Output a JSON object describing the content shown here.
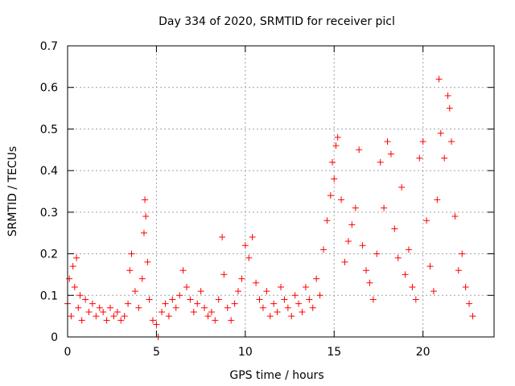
{
  "chart_data": {
    "type": "scatter",
    "title": "Day 334 of 2020, SRMTID for receiver picl",
    "xlabel": "GPS time / hours",
    "ylabel": "SRMTID / TECUs",
    "xlim": [
      0,
      24
    ],
    "ylim": [
      0,
      0.7
    ],
    "xticks": [
      0,
      5,
      10,
      15,
      20
    ],
    "yticks": [
      0,
      0.1,
      0.2,
      0.3,
      0.4,
      0.5,
      0.6,
      0.7
    ],
    "xtick_labels": [
      "0",
      "5",
      "10",
      "15",
      "20"
    ],
    "ytick_labels": [
      "0",
      "0.1",
      "0.2",
      "0.3",
      "0.4",
      "0.5",
      "0.6",
      "0.7"
    ],
    "grid": true,
    "marker": "+",
    "marker_color": "#ff0000",
    "series": [
      {
        "name": "SRMTID",
        "x": [
          0.0,
          0.1,
          0.2,
          0.3,
          0.4,
          0.5,
          0.6,
          0.7,
          0.8,
          1.0,
          1.2,
          1.4,
          1.6,
          1.8,
          2.0,
          2.2,
          2.4,
          2.6,
          2.8,
          3.0,
          3.2,
          3.4,
          3.5,
          3.6,
          3.8,
          4.0,
          4.2,
          4.3,
          4.35,
          4.4,
          4.5,
          4.6,
          4.8,
          5.0,
          5.1,
          5.3,
          5.5,
          5.7,
          5.9,
          6.1,
          6.3,
          6.5,
          6.7,
          6.9,
          7.1,
          7.3,
          7.5,
          7.7,
          7.9,
          8.1,
          8.3,
          8.5,
          8.7,
          8.8,
          9.0,
          9.2,
          9.4,
          9.6,
          9.8,
          10.0,
          10.2,
          10.4,
          10.6,
          10.8,
          11.0,
          11.2,
          11.4,
          11.6,
          11.8,
          12.0,
          12.2,
          12.4,
          12.6,
          12.8,
          13.0,
          13.2,
          13.4,
          13.6,
          13.8,
          14.0,
          14.2,
          14.4,
          14.6,
          14.8,
          14.9,
          15.0,
          15.1,
          15.2,
          15.4,
          15.6,
          15.8,
          16.0,
          16.2,
          16.4,
          16.6,
          16.8,
          17.0,
          17.2,
          17.4,
          17.6,
          17.8,
          18.0,
          18.2,
          18.4,
          18.6,
          18.8,
          19.0,
          19.2,
          19.4,
          19.6,
          19.8,
          20.0,
          20.2,
          20.4,
          20.6,
          20.8,
          20.9,
          21.0,
          21.2,
          21.4,
          21.5,
          21.6,
          21.8,
          22.0,
          22.2,
          22.4,
          22.6,
          22.8
        ],
        "values": [
          0.08,
          0.14,
          0.05,
          0.17,
          0.12,
          0.19,
          0.07,
          0.1,
          0.04,
          0.09,
          0.06,
          0.08,
          0.05,
          0.07,
          0.06,
          0.04,
          0.07,
          0.05,
          0.06,
          0.04,
          0.05,
          0.08,
          0.16,
          0.2,
          0.11,
          0.07,
          0.14,
          0.25,
          0.33,
          0.29,
          0.18,
          0.09,
          0.04,
          0.03,
          0.0,
          0.06,
          0.08,
          0.05,
          0.09,
          0.07,
          0.1,
          0.16,
          0.12,
          0.09,
          0.06,
          0.08,
          0.11,
          0.07,
          0.05,
          0.06,
          0.04,
          0.09,
          0.24,
          0.15,
          0.07,
          0.04,
          0.08,
          0.11,
          0.14,
          0.22,
          0.19,
          0.24,
          0.13,
          0.09,
          0.07,
          0.11,
          0.05,
          0.08,
          0.06,
          0.12,
          0.09,
          0.07,
          0.05,
          0.1,
          0.08,
          0.06,
          0.12,
          0.09,
          0.07,
          0.14,
          0.1,
          0.21,
          0.28,
          0.34,
          0.42,
          0.38,
          0.46,
          0.48,
          0.33,
          0.18,
          0.23,
          0.27,
          0.31,
          0.45,
          0.22,
          0.16,
          0.13,
          0.09,
          0.2,
          0.42,
          0.31,
          0.47,
          0.44,
          0.26,
          0.19,
          0.36,
          0.15,
          0.21,
          0.12,
          0.09,
          0.43,
          0.47,
          0.28,
          0.17,
          0.11,
          0.33,
          0.62,
          0.49,
          0.43,
          0.58,
          0.55,
          0.47,
          0.29,
          0.16,
          0.2,
          0.12,
          0.08,
          0.05
        ]
      }
    ]
  }
}
